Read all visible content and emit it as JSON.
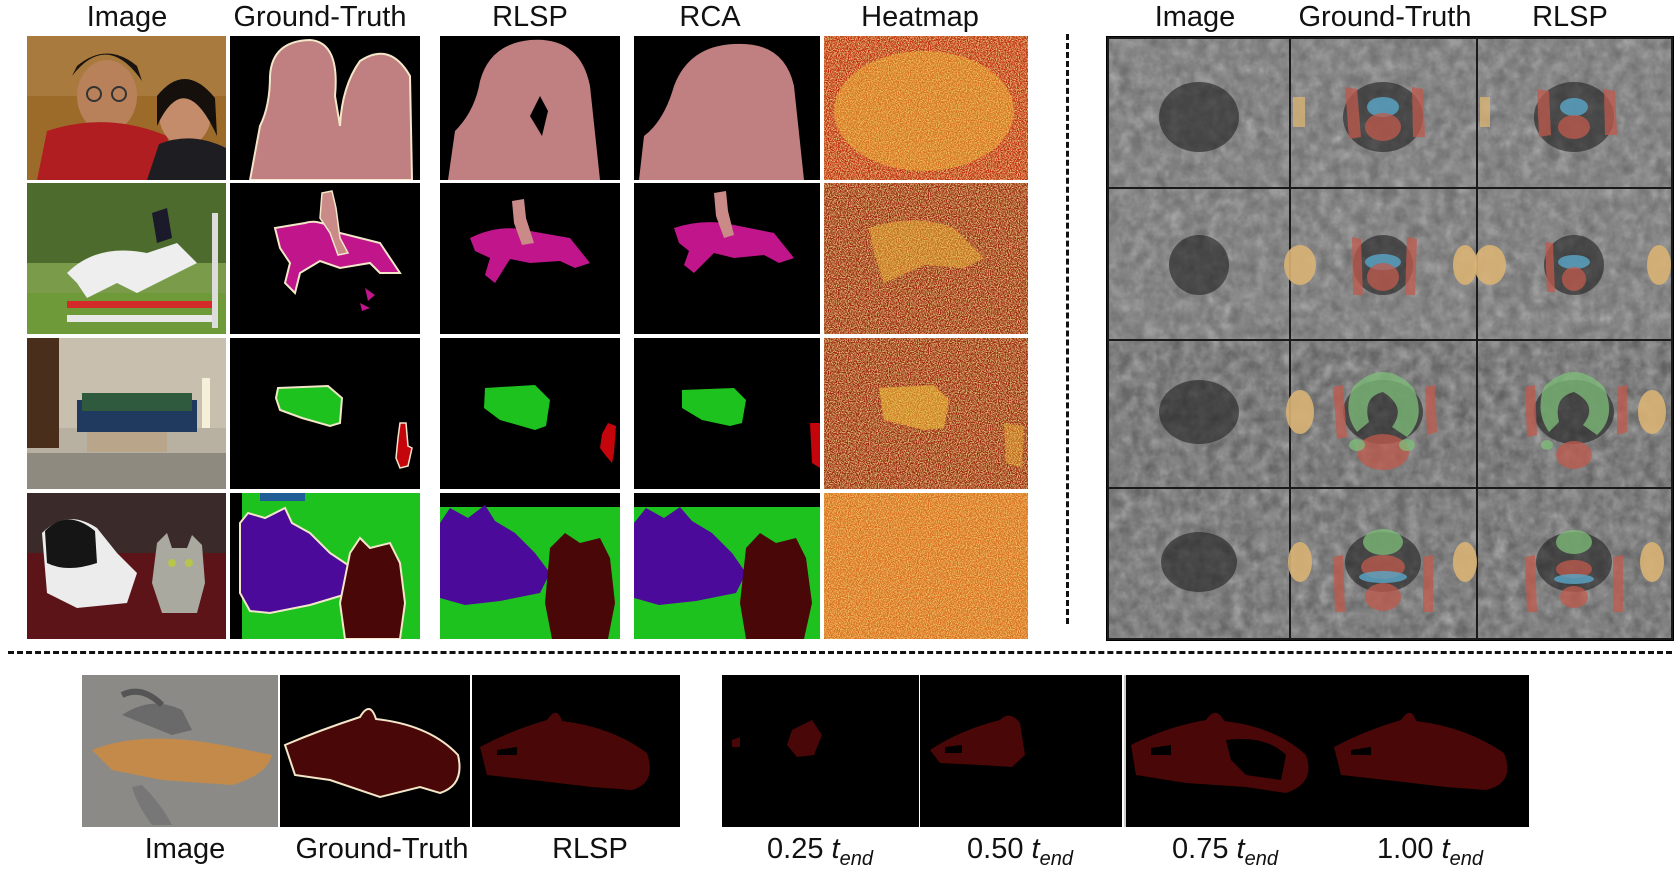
{
  "top_left": {
    "headers": [
      "Image",
      "Ground-Truth",
      "RLSP",
      "RCA",
      "Heatmap"
    ],
    "rows": [
      {
        "subject": "two people (person class)"
      },
      {
        "subject": "horse and rider jumping"
      },
      {
        "subject": "living room sofa and chair"
      },
      {
        "subject": "dog and cat on sofa"
      }
    ]
  },
  "top_right": {
    "headers": [
      "Image",
      "Ground-Truth",
      "RLSP"
    ],
    "rows": [
      {
        "subject": "MRI slice 1"
      },
      {
        "subject": "MRI slice 2"
      },
      {
        "subject": "MRI slice 3"
      },
      {
        "subject": "MRI slice 4"
      }
    ]
  },
  "bottom": {
    "labels": [
      "Image",
      "Ground-Truth",
      "RLSP"
    ],
    "time_labels": [
      {
        "value": "0.25",
        "symbol": "t",
        "subscript": "end"
      },
      {
        "value": "0.50",
        "symbol": "t",
        "subscript": "end"
      },
      {
        "value": "0.75",
        "symbol": "t",
        "subscript": "end"
      },
      {
        "value": "1.00",
        "symbol": "t",
        "subscript": "end"
      }
    ]
  },
  "colors": {
    "person": "#c07f80",
    "horse": "#c0158b",
    "rider": "#c98a88",
    "sofa": "#1ec21e",
    "chair": "#c4050c",
    "dog": "#4b0a9a",
    "cat": "#4a0707",
    "heatmap_bg": "#c2290a",
    "heatmap_hot": "#f4c43a",
    "mri_blue": "#59a6c8",
    "mri_red": "#c05a4c",
    "mri_yellow": "#d8b274",
    "mri_green": "#7fbf7a"
  }
}
